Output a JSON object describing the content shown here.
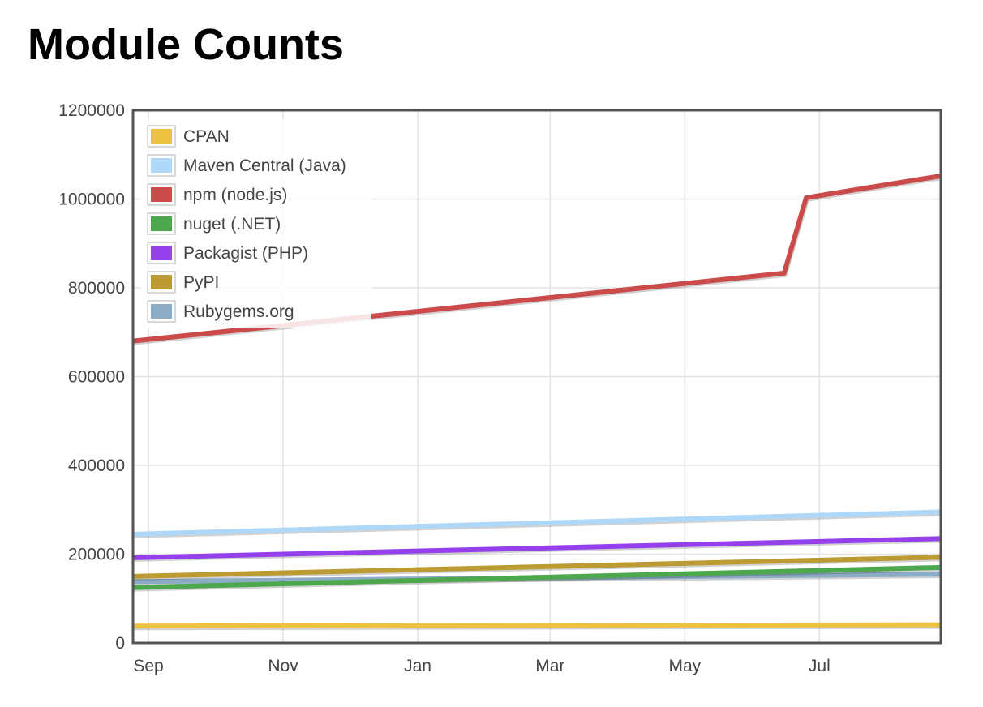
{
  "page": {
    "title": "Module Counts"
  },
  "chart_data": {
    "type": "line",
    "title": "Module Counts",
    "xlabel": "",
    "ylabel": "",
    "x_ticks": [
      "Sep",
      "Nov",
      "Jan",
      "Mar",
      "May",
      "Jul"
    ],
    "x_tick_dates": [
      "2015-09-01",
      "2015-11-01",
      "2016-01-01",
      "2016-03-01",
      "2016-05-01",
      "2016-07-01"
    ],
    "xlim": [
      "2015-08-25",
      "2016-08-25"
    ],
    "ylim": [
      0,
      1200000
    ],
    "y_ticks": [
      0,
      200000,
      400000,
      600000,
      800000,
      1000000,
      1200000
    ],
    "y_tick_labels": [
      "0",
      "200000",
      "400000",
      "600000",
      "800000",
      "1000000",
      "1200000"
    ],
    "grid": true,
    "legend_position": "top-left",
    "series": [
      {
        "name": "CPAN",
        "color": "#edc240",
        "x": [
          "2015-08-25",
          "2016-08-25"
        ],
        "y": [
          38000,
          41000
        ]
      },
      {
        "name": "Maven Central (Java)",
        "color": "#afd8f8",
        "x": [
          "2015-08-25",
          "2016-08-25"
        ],
        "y": [
          245000,
          295000
        ]
      },
      {
        "name": "npm (node.js)",
        "color": "#cb4b4b",
        "x": [
          "2015-08-25",
          "2016-06-15",
          "2016-06-25",
          "2016-08-25"
        ],
        "y": [
          680000,
          833000,
          1003000,
          1052000
        ]
      },
      {
        "name": "nuget (.NET)",
        "color": "#4da74d",
        "x": [
          "2015-08-25",
          "2016-08-25"
        ],
        "y": [
          125000,
          170000
        ]
      },
      {
        "name": "Packagist (PHP)",
        "color": "#9440ed",
        "x": [
          "2015-08-25",
          "2016-08-25"
        ],
        "y": [
          192000,
          235000
        ]
      },
      {
        "name": "PyPI",
        "color": "#bd9b33",
        "x": [
          "2015-08-25",
          "2016-08-25"
        ],
        "y": [
          150000,
          193000
        ]
      },
      {
        "name": "Rubygems.org",
        "color": "#8cacc6",
        "x": [
          "2015-08-25",
          "2016-08-25"
        ],
        "y": [
          138000,
          155000
        ]
      }
    ]
  }
}
